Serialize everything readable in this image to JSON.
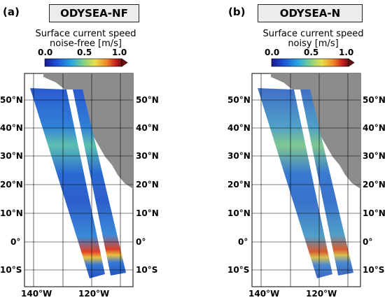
{
  "panels": [
    {
      "letter": "(a)",
      "title": "ODYSEA-NF",
      "colorbar_label_line1": "Surface current speed",
      "colorbar_label_line2": "noise-free [m/s]"
    },
    {
      "letter": "(b)",
      "title": "ODYSEA-N",
      "colorbar_label_line1": "Surface current speed",
      "colorbar_label_line2": "noisy [m/s]"
    }
  ],
  "colorbar": {
    "ticks": [
      "0.0",
      "0.5",
      "1.0"
    ],
    "colors": [
      "#1a1a8c",
      "#1f4fd6",
      "#28a8e0",
      "#7fd08a",
      "#e8e04a",
      "#f08a2a",
      "#c81e1e",
      "#6e0f0f"
    ]
  },
  "lat_labels": [
    "50°N",
    "40°N",
    "30°N",
    "20°N",
    "10°N",
    "0°",
    "10°S"
  ],
  "lon_labels": [
    "140°W",
    "120°W"
  ],
  "colors": {
    "land": "#8c8c8c",
    "ocean_base": "#2452c2",
    "grid": "#000000"
  }
}
